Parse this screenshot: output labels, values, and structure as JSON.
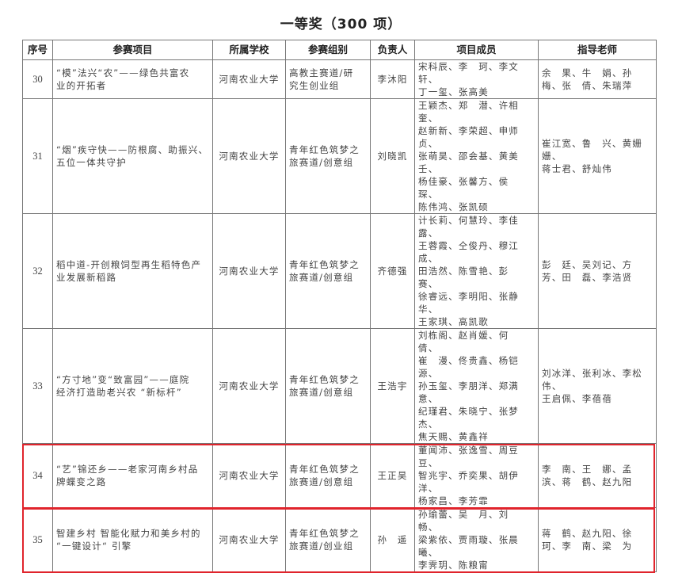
{
  "title": "一等奖（300 项）",
  "headers": [
    "序号",
    "参赛项目",
    "所属学校",
    "参赛组别",
    "负责人",
    "项目成员",
    "指导老师"
  ],
  "highlight_color": "#e0242c",
  "rows": [
    {
      "no": "30",
      "project": "“模”法兴“农”——绿色共富农\n业的开拓者",
      "school": "河南农业大学",
      "group": "高教主赛道/研\n究生创业组",
      "leader": "李沐阳",
      "members": "宋科辰、李　珂、李文轩、\n丁一玺、张高美",
      "advisors": "余　果、牛　娟、孙\n梅、张　倩、朱瑞萍",
      "highlighted": false
    },
    {
      "no": "31",
      "project": "“烟”疾守快——防根腐、助振兴、\n五位一体共守护",
      "school": "河南农业大学",
      "group": "青年红色筑梦之\n旅赛道/创意组",
      "leader": "刘晓凯",
      "members": "王颖杰、郑　潜、许相奎、\n赵新新、李荣超、申师贞、\n张萌昊、邵会基、黄美壬、\n杨佳豪、张馨方、侯　琛、\n陈伟鸿、张凯硕",
      "advisors": "崔江宽、鲁　兴、黄姗姗、\n蒋士君、舒灿伟",
      "highlighted": false
    },
    {
      "no": "32",
      "project": "稻中道-开创粮饲型再生稻特色产\n业发展新稻路",
      "school": "河南农业大学",
      "group": "青年红色筑梦之\n旅赛道/创意组",
      "leader": "齐德强",
      "members": "计长莉、何慧玲、李佳露、\n王蓉霞、仝俊丹、穆江成、\n田浩然、陈雪艳、彭　赛、\n徐睿远、李明阳、张静华、\n王家琪、高凯歌",
      "advisors": "彭　廷、吴刘记、方\n芳、田　磊、李浩贤",
      "highlighted": false
    },
    {
      "no": "33",
      "project": "“方寸地”变“致富园”——庭院\n经济打造助老兴农 “新标杆”",
      "school": "河南农业大学",
      "group": "青年红色筑梦之\n旅赛道/创意组",
      "leader": "王浩宇",
      "members": "刘栋阁、赵肖媛、何　倩、\n崔　漫、佟贵鑫、杨铠源、\n孙玉玺、李朋洋、郑满意、\n纪瑾君、朱晓宁、张梦杰、\n焦天赐、黄鑫祥",
      "advisors": "刘冰洋、张利冰、李松伟、\n王启佩、李蓓蓓",
      "highlighted": false
    },
    {
      "no": "34",
      "project": "“艺”锦还乡——老家河南乡村品\n牌蝶变之路",
      "school": "河南农业大学",
      "group": "青年红色筑梦之\n旅赛道/创意组",
      "leader": "王正昊",
      "members": "董闻沛、张逸雪、周豆豆、\n智兆宇、乔奕果、胡伊洋、\n杨家昌、李芳霏",
      "advisors": "李　南、王　娜、孟\n滨、蒋　鹤、赵九阳",
      "highlighted": true
    },
    {
      "no": "35",
      "project": "智建乡村 智能化赋力和美乡村的\n“一键设计“ 引擎",
      "school": "河南农业大学",
      "group": "青年红色筑梦之\n旅赛道/创业组",
      "leader": "孙　遥",
      "members": "孙瑜蕾、吴　月、刘　畅、\n梁紫依、贾雨璇、张晨曦、\n李霁玥、陈粮甯",
      "advisors": "蒋　鹤、赵九阳、徐\n珂、李　南、梁　为",
      "highlighted": true
    }
  ]
}
